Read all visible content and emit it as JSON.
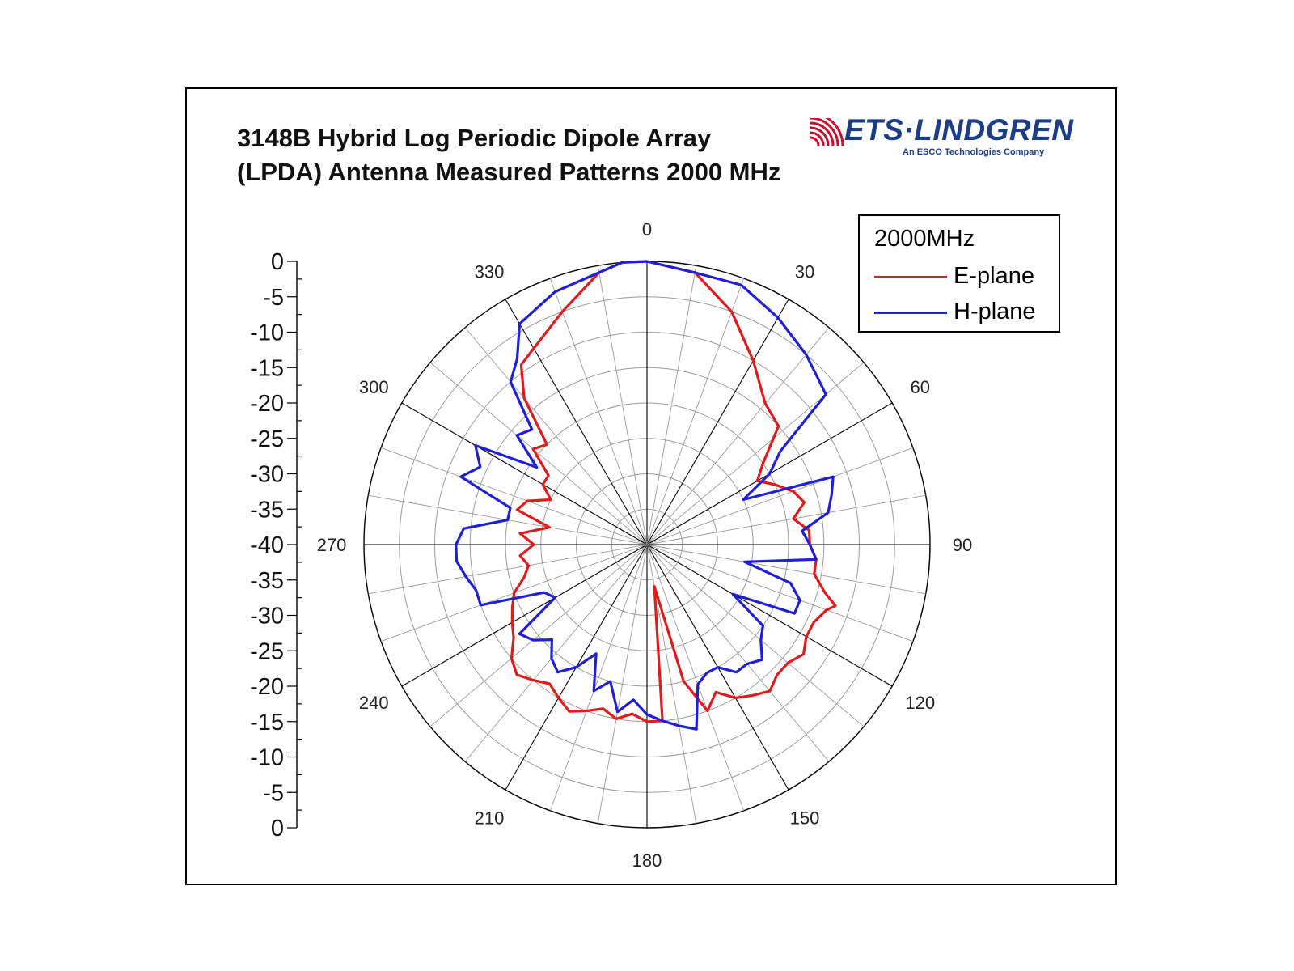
{
  "title_lines": [
    "3148B Hybrid Log Periodic Dipole Array",
    "(LPDA) Antenna Measured Patterns 2000 MHz"
  ],
  "logo": {
    "wordmark": "ETS·LINDGREN",
    "tagline": "An ESCO Technologies Company",
    "color": "#1b3c87",
    "waves_color": "#c8102e"
  },
  "legend": {
    "title": "2000MHz",
    "items": [
      {
        "label": "E-plane",
        "color": "#e31a1c"
      },
      {
        "label": "H-plane",
        "color": "#1f1fd6"
      }
    ]
  },
  "chart_data": {
    "type": "polar",
    "radial_scale": {
      "min": -40,
      "max": 0,
      "unit": "dB",
      "ring_step": 5
    },
    "scale_labels": [
      "0",
      "-5",
      "-10",
      "-15",
      "-20",
      "-25",
      "-30",
      "-35",
      "-40",
      "-35",
      "-30",
      "-25",
      "-20",
      "-15",
      "-10",
      "-5",
      "0"
    ],
    "angle_labels": [
      "0",
      "30",
      "60",
      "90",
      "120",
      "150",
      "180",
      "210",
      "240",
      "270",
      "300",
      "330"
    ],
    "angle_step_deg": 10,
    "series": [
      {
        "name": "E-plane",
        "color": "#e31a1c",
        "points": [
          [
            0,
            0
          ],
          [
            10,
            -1
          ],
          [
            20,
            -5
          ],
          [
            30,
            -10
          ],
          [
            40,
            -14
          ],
          [
            48,
            -15
          ],
          [
            55,
            -20
          ],
          [
            60,
            -22
          ],
          [
            65,
            -20
          ],
          [
            70,
            -18
          ],
          [
            75,
            -17
          ],
          [
            80,
            -19
          ],
          [
            85,
            -17
          ],
          [
            90,
            -17
          ],
          [
            95,
            -16
          ],
          [
            100,
            -16
          ],
          [
            105,
            -14
          ],
          [
            108,
            -12
          ],
          [
            110,
            -13
          ],
          [
            115,
            -14
          ],
          [
            120,
            -14
          ],
          [
            125,
            -13
          ],
          [
            130,
            -14
          ],
          [
            135,
            -14
          ],
          [
            140,
            -13
          ],
          [
            145,
            -14
          ],
          [
            150,
            -15
          ],
          [
            155,
            -17
          ],
          [
            160,
            -15
          ],
          [
            165,
            -20
          ],
          [
            170,
            -34
          ],
          [
            175,
            -15
          ],
          [
            180,
            -15
          ],
          [
            185,
            -16
          ],
          [
            190,
            -15
          ],
          [
            195,
            -16
          ],
          [
            200,
            -15
          ],
          [
            205,
            -14
          ],
          [
            210,
            -15
          ],
          [
            215,
            -16
          ],
          [
            220,
            -15
          ],
          [
            225,
            -14
          ],
          [
            230,
            -15
          ],
          [
            235,
            -17
          ],
          [
            240,
            -18
          ],
          [
            245,
            -19
          ],
          [
            250,
            -20
          ],
          [
            255,
            -22
          ],
          [
            260,
            -23
          ],
          [
            265,
            -22
          ],
          [
            270,
            -24
          ],
          [
            275,
            -22
          ],
          [
            280,
            -26
          ],
          [
            285,
            -21
          ],
          [
            290,
            -22
          ],
          [
            295,
            -25
          ],
          [
            300,
            -23
          ],
          [
            305,
            -23
          ],
          [
            310,
            -19
          ],
          [
            315,
            -20
          ],
          [
            320,
            -13
          ],
          [
            325,
            -9
          ],
          [
            330,
            -8
          ],
          [
            340,
            -5
          ],
          [
            350,
            -1
          ],
          [
            355,
            0
          ]
        ]
      },
      {
        "name": "H-plane",
        "color": "#1f1fd6",
        "points": [
          [
            0,
            0
          ],
          [
            10,
            -1
          ],
          [
            20,
            -1
          ],
          [
            30,
            -3
          ],
          [
            40,
            -5
          ],
          [
            50,
            -7
          ],
          [
            55,
            -17
          ],
          [
            60,
            -20
          ],
          [
            65,
            -25
          ],
          [
            70,
            -12
          ],
          [
            75,
            -13
          ],
          [
            80,
            -14
          ],
          [
            85,
            -18
          ],
          [
            90,
            -17
          ],
          [
            95,
            -16
          ],
          [
            100,
            -26
          ],
          [
            105,
            -19
          ],
          [
            110,
            -17
          ],
          [
            115,
            -17
          ],
          [
            120,
            -26
          ],
          [
            125,
            -20
          ],
          [
            130,
            -19
          ],
          [
            135,
            -17
          ],
          [
            140,
            -18
          ],
          [
            145,
            -18
          ],
          [
            150,
            -20
          ],
          [
            155,
            -20
          ],
          [
            160,
            -19
          ],
          [
            165,
            -13
          ],
          [
            170,
            -14
          ],
          [
            175,
            -15
          ],
          [
            180,
            -16
          ],
          [
            185,
            -18
          ],
          [
            190,
            -16
          ],
          [
            195,
            -20
          ],
          [
            200,
            -18
          ],
          [
            205,
            -23
          ],
          [
            210,
            -20
          ],
          [
            215,
            -18
          ],
          [
            220,
            -19
          ],
          [
            225,
            -21
          ],
          [
            230,
            -19
          ],
          [
            235,
            -18
          ],
          [
            240,
            -25
          ],
          [
            245,
            -24
          ],
          [
            250,
            -15
          ],
          [
            255,
            -15
          ],
          [
            260,
            -14
          ],
          [
            265,
            -13
          ],
          [
            270,
            -13
          ],
          [
            275,
            -14
          ],
          [
            280,
            -20
          ],
          [
            285,
            -20
          ],
          [
            290,
            -12
          ],
          [
            295,
            -14
          ],
          [
            300,
            -12
          ],
          [
            305,
            -21
          ],
          [
            310,
            -16
          ],
          [
            315,
            -17
          ],
          [
            320,
            -10
          ],
          [
            325,
            -8
          ],
          [
            330,
            -4
          ],
          [
            340,
            -2
          ],
          [
            350,
            -1
          ],
          [
            355,
            0
          ]
        ]
      }
    ]
  }
}
